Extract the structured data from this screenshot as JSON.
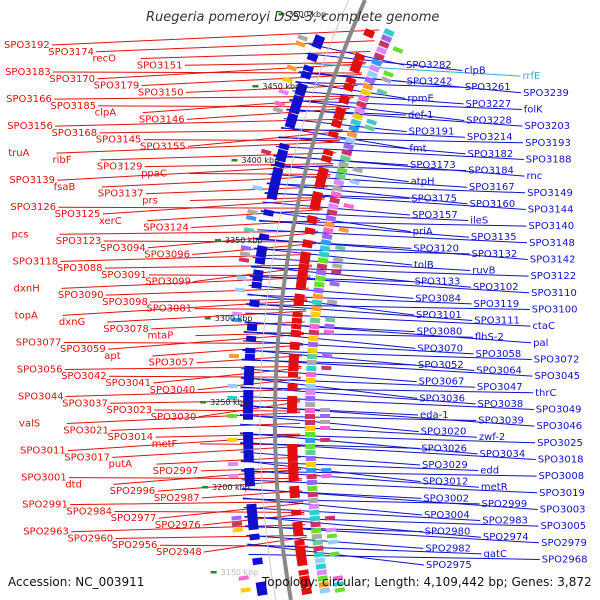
{
  "title": "Ruegeria pomeroyi DSS-3, complete genome",
  "footer": {
    "accession": "Accession: NC_003911",
    "topology": "Topology: circular; Length: 4,109,442 bp; Genes: 3,872"
  },
  "colors": {
    "forward": "#e01010",
    "reverse": "#1010cc",
    "rrna": "#33aadd",
    "backbone": "#888888",
    "tick": "#2a8a2a"
  },
  "ticks": [
    "3500 kbp",
    "3450 kbp",
    "3400 kbp",
    "3350 kbp",
    "3300 kbp",
    "3250 kbp",
    "3200 kbp",
    "3150 kbp"
  ],
  "left_labels": [
    "SPO3192",
    "SPO3174",
    "recO",
    "SPO3151",
    "SPO3183",
    "SPO3170",
    "SPO3179",
    "SPO3150",
    "SPO3166",
    "SPO3185",
    "clpA",
    "SPO3146",
    "SPO3156",
    "SPO3168",
    "SPO3145",
    "SPO3155",
    "truA",
    "ribF",
    "SPO3129",
    "ppaC",
    "SPO3139",
    "fsaB",
    "SPO3137",
    "prs",
    "SPO3126",
    "SPO3125",
    "xerC",
    "SPO3124",
    "pcs",
    "SPO3123",
    "SPO3094",
    "SPO3096",
    "SPO3118",
    "SPO3088",
    "SPO3091",
    "SPO3099",
    "dxnH",
    "SPO3090",
    "SPO3098",
    "SPO3081",
    "topA",
    "dxnG",
    "SPO3078",
    "mtaP",
    "SPO3077",
    "SPO3059",
    "apt",
    "SPO3057",
    "SPO3056",
    "SPO3042",
    "SPO3041",
    "SPO3040",
    "SPO3044",
    "SPO3037",
    "SPO3023",
    "SPO3030",
    "valS",
    "SPO3021",
    "SPO3014",
    "metF",
    "SPO3011",
    "SPO3017",
    "putA",
    "SPO2997",
    "SPO3001",
    "dtd",
    "SPO2996",
    "SPO2987",
    "SPO2991",
    "SPO2984",
    "SPO2977",
    "SPO2976",
    "SPO2963",
    "SPO2960",
    "SPO2956",
    "SPO2948"
  ],
  "right_labels": [
    "SPO3282",
    "clpB",
    "rrfE",
    "SPO3242",
    "SPO3261",
    "SPO3239",
    "rpmE",
    "SPO3227",
    "folK",
    "def-1",
    "SPO3228",
    "SPO3203",
    "SPO3191",
    "SPO3214",
    "SPO3193",
    "fmt",
    "SPO3182",
    "SPO3188",
    "SPO3173",
    "SPO3184",
    "rnc",
    "atpH",
    "SPO3167",
    "SPO3149",
    "SPO3175",
    "SPO3160",
    "SPO3144",
    "SPO3157",
    "ileS",
    "SPO3140",
    "priA",
    "SPO3135",
    "SPO3148",
    "SPO3120",
    "SPO3132",
    "SPO3142",
    "tolB",
    "ruvB",
    "SPO3122",
    "SPO3133",
    "SPO3102",
    "SPO3110",
    "SPO3084",
    "SPO3119",
    "SPO3100",
    "SPO3101",
    "SPO3111",
    "ctaC",
    "SPO3080",
    "flhS-2",
    "pal",
    "SPO3070",
    "SPO3058",
    "SPO3072",
    "SPO3052",
    "SPO3064",
    "SPO3045",
    "SPO3067",
    "SPO3047",
    "thrC",
    "SPO3036",
    "SPO3038",
    "SPO3049",
    "eda-1",
    "SPO3039",
    "SPO3046",
    "SPO3020",
    "zwf-2",
    "SPO3025",
    "SPO3026",
    "SPO3034",
    "SPO3018",
    "SPO3029",
    "edd",
    "SPO3008",
    "SPO3012",
    "metR",
    "SPO3019",
    "SPO3002",
    "SPO2999",
    "SPO3003",
    "SPO3004",
    "SPO2983",
    "SPO3005",
    "SPO2980",
    "SPO2974",
    "SPO2979",
    "SPO2982",
    "gatC",
    "SPO2968",
    "SPO2975"
  ]
}
